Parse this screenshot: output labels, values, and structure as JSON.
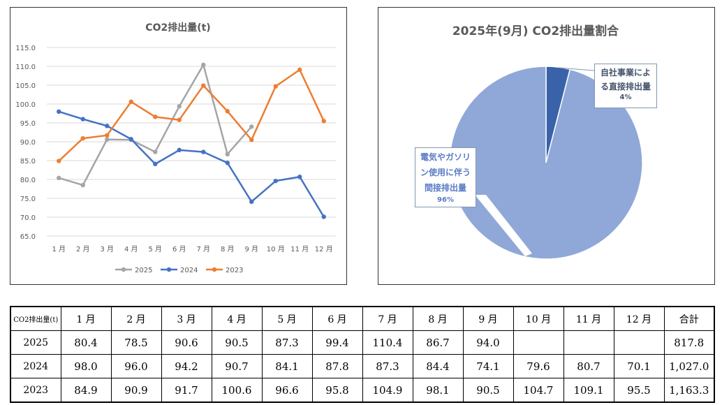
{
  "chart_data": [
    {
      "type": "line",
      "title": "CO2排出量(t)",
      "categories": [
        "1 月",
        "2 月",
        "3 月",
        "4 月",
        "5 月",
        "6 月",
        "7 月",
        "8 月",
        "9 月",
        "10 月",
        "11 月",
        "12 月"
      ],
      "y_ticks": [
        "115.0",
        "110.0",
        "105.0",
        "100.0",
        "95.0",
        "90.0",
        "85.0",
        "80.0",
        "75.0",
        "70.0",
        "65.0"
      ],
      "ylim": [
        65,
        115
      ],
      "grid": true,
      "legend_position": "bottom",
      "series": [
        {
          "name": "2025",
          "color": "#a5a5a5",
          "values": [
            80.4,
            78.5,
            90.6,
            90.5,
            87.3,
            99.4,
            110.4,
            86.7,
            94.0,
            null,
            null,
            null
          ]
        },
        {
          "name": "2024",
          "color": "#4472c4",
          "values": [
            98.0,
            96.0,
            94.2,
            90.7,
            84.1,
            87.8,
            87.3,
            84.4,
            74.1,
            79.6,
            80.7,
            70.1
          ]
        },
        {
          "name": "2023",
          "color": "#ed7d31",
          "values": [
            84.9,
            90.9,
            91.7,
            100.6,
            96.6,
            95.8,
            104.9,
            98.1,
            90.5,
            104.7,
            109.1,
            95.5
          ]
        }
      ]
    },
    {
      "type": "pie",
      "title": "2025年(9月) CO2排出量割合",
      "slices": [
        {
          "label": "自社事業による直接排出量",
          "label_lines": [
            "自社事業によ",
            "る直接排出量"
          ],
          "percent_label": "4%",
          "value": 4,
          "color": "#3a62a8"
        },
        {
          "label": "電気やガソリン使用に伴う間接排出量",
          "label_lines": [
            "電気やガソリ",
            "ン使用に伴う",
            "間接排出量"
          ],
          "percent_label": "96%",
          "value": 96,
          "color": "#8fa8d8"
        }
      ]
    }
  ],
  "table": {
    "corner": "CO2排出量(t)",
    "headers": [
      "1 月",
      "2 月",
      "3 月",
      "4 月",
      "5 月",
      "6 月",
      "7 月",
      "8 月",
      "9 月",
      "10 月",
      "11 月",
      "12 月",
      "合計"
    ],
    "rows": [
      {
        "year": "2025",
        "cells": [
          "80.4",
          "78.5",
          "90.6",
          "90.5",
          "87.3",
          "99.4",
          "110.4",
          "86.7",
          "94.0",
          "",
          "",
          "",
          "817.8"
        ]
      },
      {
        "year": "2024",
        "cells": [
          "98.0",
          "96.0",
          "94.2",
          "90.7",
          "84.1",
          "87.8",
          "87.3",
          "84.4",
          "74.1",
          "79.6",
          "80.7",
          "70.1",
          "1,027.0"
        ]
      },
      {
        "year": "2023",
        "cells": [
          "84.9",
          "90.9",
          "91.7",
          "100.6",
          "96.6",
          "95.8",
          "104.9",
          "98.1",
          "90.5",
          "104.7",
          "109.1",
          "95.5",
          "1,163.3"
        ]
      }
    ]
  }
}
